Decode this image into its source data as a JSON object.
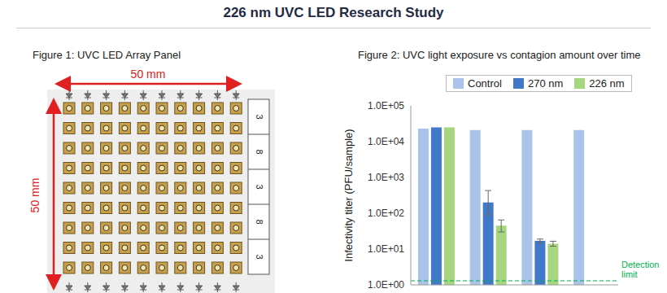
{
  "title": "226 nm UVC LED Research Study",
  "figure1": {
    "title": "Figure 1: UVC LED Array Panel",
    "width_label": "50 mm",
    "height_label": "50 mm",
    "side_labels": [
      "3",
      "8",
      "3",
      "8",
      "3"
    ]
  },
  "chart_data": {
    "type": "bar",
    "title": "Figure 2: UVC light exposure vs contagion amount over time",
    "y_label": "Infectivity titer (PFU/sample)",
    "categories": [
      null,
      null,
      null,
      null
    ],
    "series": [
      {
        "name": "Control",
        "color": "#a9c3ea",
        "values": [
          23000,
          21000,
          21000,
          21000
        ],
        "errors": [
          null,
          null,
          null,
          null
        ]
      },
      {
        "name": "270 nm",
        "color": "#4278c8",
        "values": [
          25000,
          200,
          17,
          null
        ],
        "errors": [
          null,
          [
            110,
            230
          ],
          [
            2,
            2
          ],
          null
        ]
      },
      {
        "name": "226 nm",
        "color": "#a6d77f",
        "values": [
          25000,
          45,
          14,
          null
        ],
        "errors": [
          null,
          [
            15,
            20
          ],
          [
            2,
            2.5
          ],
          null
        ]
      }
    ],
    "log": "y",
    "ylim": [
      1,
      100000
    ],
    "yticks": [
      {
        "value": 1,
        "label": "1.0E+00"
      },
      {
        "value": 10,
        "label": "1.0E+01"
      },
      {
        "value": 100,
        "label": "1.0E+02"
      },
      {
        "value": 1000,
        "label": "1.0E+03"
      },
      {
        "value": 10000,
        "label": "1.0E+04"
      },
      {
        "value": 100000,
        "label": "1.0E+05"
      }
    ],
    "grid": false,
    "legend": "top",
    "tick_labels": "y",
    "detection_limit": {
      "value": 1.3,
      "label": "Detection limit",
      "color": "#00b050",
      "line_style": "dashed"
    }
  }
}
